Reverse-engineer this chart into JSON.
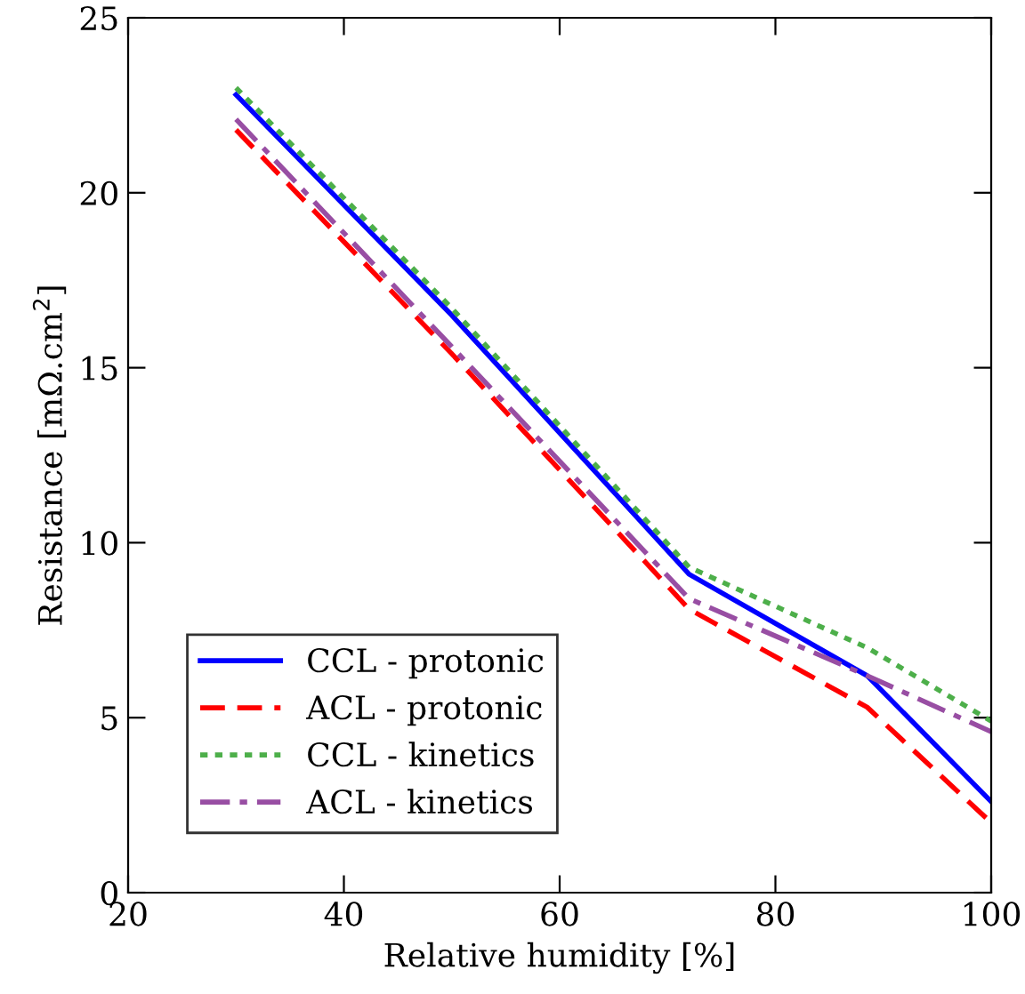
{
  "chart_data": {
    "type": "line",
    "xlabel": "Relative humidity [%]",
    "ylabel": "Resistance [mΩ.cm$^{2}$]",
    "x": [
      30,
      50,
      72,
      88.5,
      100
    ],
    "series": [
      {
        "name": "CCL - protonic",
        "color": "#0000ff",
        "line_style": "solid",
        "values": [
          22.8,
          16.5,
          9.1,
          6.2,
          2.6
        ]
      },
      {
        "name": "ACL - protonic",
        "color": "#ff0000",
        "line_style": "dashed",
        "values": [
          21.8,
          15.4,
          8.1,
          5.3,
          2.0
        ]
      },
      {
        "name": "CCL - kinetics",
        "color": "#4daf4a",
        "line_style": "dotted",
        "values": [
          23.0,
          16.7,
          9.3,
          7.0,
          4.9
        ]
      },
      {
        "name": "ACL - kinetics",
        "color": "#984ea3",
        "line_style": "dashdot",
        "values": [
          22.1,
          15.6,
          8.4,
          6.2,
          4.6
        ]
      }
    ],
    "xlim": [
      20,
      100
    ],
    "xticks": [
      20,
      40,
      60,
      80,
      100
    ],
    "ylim": [
      0,
      25
    ],
    "yticks": [
      0,
      5,
      10,
      15,
      20,
      25
    ],
    "legend": "bottom left",
    "grid": false,
    "marker": "none"
  }
}
